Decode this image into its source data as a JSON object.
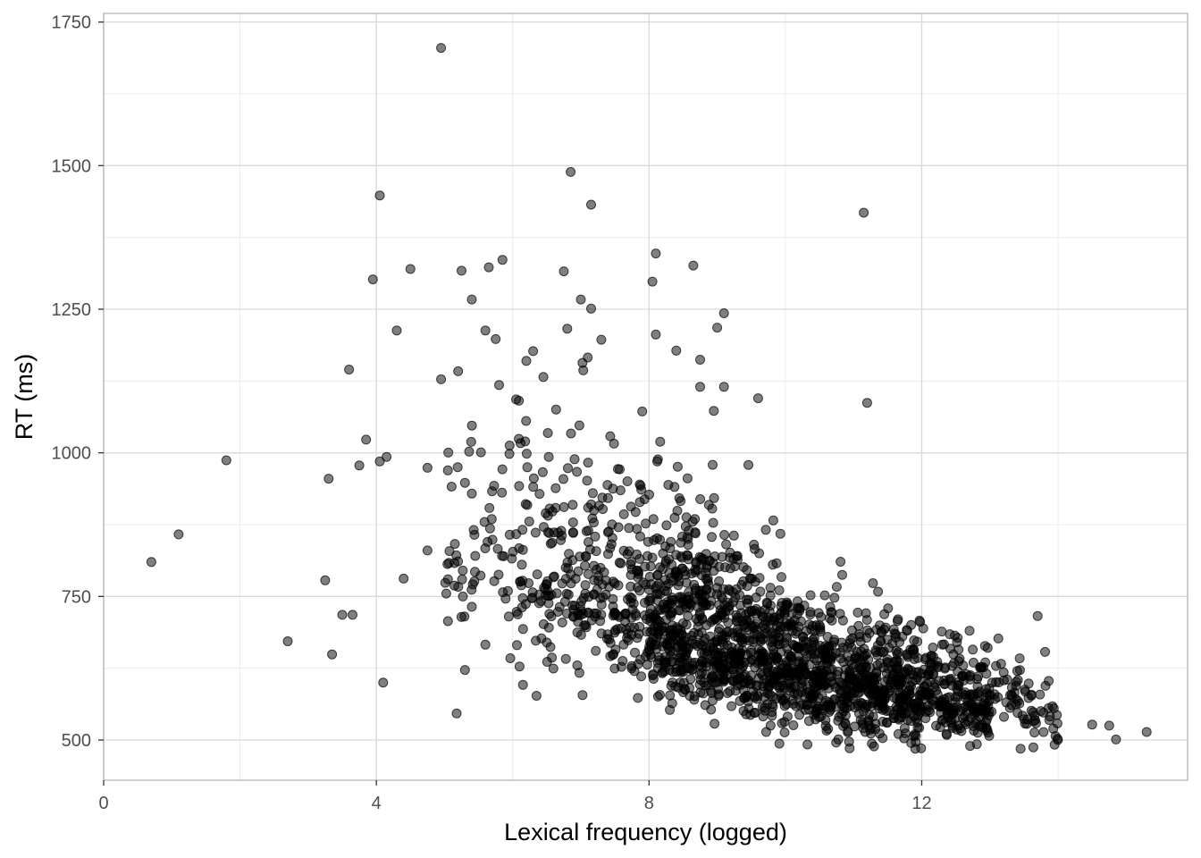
{
  "chart_data": {
    "type": "scatter",
    "title": "",
    "xlabel": "Lexical frequency (logged)",
    "ylabel": "RT (ms)",
    "xlim": [
      0,
      15.9
    ],
    "ylim": [
      430,
      1765
    ],
    "x_ticks": [
      "0",
      "4",
      "8",
      "12"
    ],
    "y_ticks": [
      "500",
      "750",
      "1000",
      "1250",
      "1500",
      "1750"
    ],
    "grid": true,
    "legend": "none",
    "colors": {
      "point": "#000000",
      "grid_major": "#d9d9d9",
      "grid_minor": "#ececec",
      "panel_border": "#b3b3b3"
    },
    "point_opacity": 0.5,
    "outliers": [
      {
        "x": 0.7,
        "y": 810
      },
      {
        "x": 1.1,
        "y": 858
      },
      {
        "x": 1.8,
        "y": 987
      },
      {
        "x": 2.7,
        "y": 672
      },
      {
        "x": 3.25,
        "y": 778
      },
      {
        "x": 3.3,
        "y": 955
      },
      {
        "x": 3.35,
        "y": 649
      },
      {
        "x": 3.5,
        "y": 718
      },
      {
        "x": 3.6,
        "y": 1145
      },
      {
        "x": 3.65,
        "y": 718
      },
      {
        "x": 3.75,
        "y": 978
      },
      {
        "x": 3.85,
        "y": 1023
      },
      {
        "x": 3.95,
        "y": 1302
      },
      {
        "x": 4.05,
        "y": 985
      },
      {
        "x": 4.05,
        "y": 1448
      },
      {
        "x": 4.1,
        "y": 600
      },
      {
        "x": 4.15,
        "y": 993
      },
      {
        "x": 4.3,
        "y": 1213
      },
      {
        "x": 4.4,
        "y": 781
      },
      {
        "x": 4.5,
        "y": 1320
      },
      {
        "x": 4.75,
        "y": 974
      },
      {
        "x": 4.75,
        "y": 830
      },
      {
        "x": 4.95,
        "y": 1128
      },
      {
        "x": 4.95,
        "y": 1705
      },
      {
        "x": 5.05,
        "y": 707
      },
      {
        "x": 5.05,
        "y": 780
      },
      {
        "x": 5.2,
        "y": 1142
      },
      {
        "x": 5.25,
        "y": 1317
      },
      {
        "x": 5.3,
        "y": 622
      },
      {
        "x": 5.4,
        "y": 1267
      },
      {
        "x": 5.4,
        "y": 732
      },
      {
        "x": 5.6,
        "y": 666
      },
      {
        "x": 5.6,
        "y": 1213
      },
      {
        "x": 5.65,
        "y": 1323
      },
      {
        "x": 5.75,
        "y": 1198
      },
      {
        "x": 5.85,
        "y": 1336
      },
      {
        "x": 5.8,
        "y": 1118
      },
      {
        "x": 6.05,
        "y": 1093
      },
      {
        "x": 6.1,
        "y": 628
      },
      {
        "x": 6.15,
        "y": 596
      },
      {
        "x": 6.2,
        "y": 1160
      },
      {
        "x": 6.3,
        "y": 1177
      },
      {
        "x": 6.35,
        "y": 577
      },
      {
        "x": 6.45,
        "y": 1132
      },
      {
        "x": 6.75,
        "y": 1316
      },
      {
        "x": 6.8,
        "y": 1216
      },
      {
        "x": 6.85,
        "y": 1489
      },
      {
        "x": 7.0,
        "y": 1267
      },
      {
        "x": 7.1,
        "y": 1166
      },
      {
        "x": 7.15,
        "y": 1251
      },
      {
        "x": 7.15,
        "y": 1432
      },
      {
        "x": 7.3,
        "y": 1197
      },
      {
        "x": 7.9,
        "y": 1072
      },
      {
        "x": 8.05,
        "y": 1298
      },
      {
        "x": 8.1,
        "y": 1206
      },
      {
        "x": 8.1,
        "y": 1347
      },
      {
        "x": 8.4,
        "y": 1178
      },
      {
        "x": 8.65,
        "y": 1326
      },
      {
        "x": 8.75,
        "y": 1162
      },
      {
        "x": 8.75,
        "y": 1115
      },
      {
        "x": 8.95,
        "y": 1073
      },
      {
        "x": 9.0,
        "y": 1218
      },
      {
        "x": 9.1,
        "y": 1243
      },
      {
        "x": 9.1,
        "y": 1115
      },
      {
        "x": 9.6,
        "y": 1095
      },
      {
        "x": 11.15,
        "y": 1418
      },
      {
        "x": 11.2,
        "y": 1087
      },
      {
        "x": 13.7,
        "y": 716
      },
      {
        "x": 14.5,
        "y": 527
      },
      {
        "x": 14.75,
        "y": 525
      },
      {
        "x": 14.85,
        "y": 501
      },
      {
        "x": 15.3,
        "y": 514
      },
      {
        "x": 13.95,
        "y": 492
      },
      {
        "x": 13.45,
        "y": 485
      },
      {
        "x": 11.3,
        "y": 489
      }
    ],
    "bulk_description": "Approximately 2100 additional points form a dense negatively sloped cloud, densest around x 8-13 and y 500-800 ms; rendered by a seeded sampler following the visible distribution.",
    "bulk_band": [
      {
        "x": 5.5,
        "y_center": 800,
        "y_spread": 130,
        "weight": 0.4
      },
      {
        "x": 6.5,
        "y_center": 780,
        "y_spread": 140,
        "weight": 0.8
      },
      {
        "x": 7.5,
        "y_center": 740,
        "y_spread": 130,
        "weight": 1.2
      },
      {
        "x": 8.5,
        "y_center": 690,
        "y_spread": 110,
        "weight": 2.3
      },
      {
        "x": 9.5,
        "y_center": 640,
        "y_spread": 90,
        "weight": 2.2
      },
      {
        "x": 10.5,
        "y_center": 610,
        "y_spread": 75,
        "weight": 1.9
      },
      {
        "x": 11.5,
        "y_center": 585,
        "y_spread": 65,
        "weight": 1.9
      },
      {
        "x": 12.5,
        "y_center": 570,
        "y_spread": 55,
        "weight": 1.4
      },
      {
        "x": 13.5,
        "y_center": 560,
        "y_spread": 45,
        "weight": 0.5
      }
    ]
  }
}
